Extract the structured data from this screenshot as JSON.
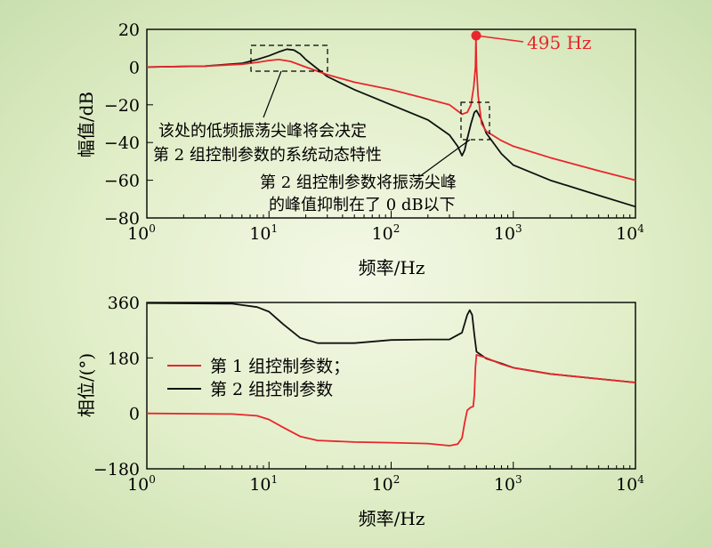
{
  "colors": {
    "red": "#e8262c",
    "black": "#111111"
  },
  "chart_data": [
    {
      "type": "line",
      "xscale": "log",
      "xlim": [
        1,
        10000
      ],
      "ylim": [
        -80,
        20
      ],
      "xlabel": "频率/Hz",
      "ylabel": "幅值/dB",
      "xtick_base": "10",
      "xtick_exponents": [
        "0",
        "1",
        "2",
        "3",
        "4"
      ],
      "yticks": [
        "20",
        "0",
        "−20",
        "−40",
        "−60",
        "−80"
      ],
      "ytick_values": [
        20,
        0,
        -20,
        -40,
        -60,
        -80
      ],
      "series": [
        {
          "name": "第 1 组控制参数；",
          "color": "red",
          "points": [
            [
              1,
              0
            ],
            [
              3,
              0.5
            ],
            [
              6,
              1.5
            ],
            [
              8,
              2.5
            ],
            [
              10,
              3.5
            ],
            [
              12,
              4
            ],
            [
              15,
              3
            ],
            [
              20,
              0
            ],
            [
              30,
              -4
            ],
            [
              50,
              -8
            ],
            [
              100,
              -12
            ],
            [
              200,
              -17
            ],
            [
              300,
              -20
            ],
            [
              380,
              -25
            ],
            [
              420,
              -24
            ],
            [
              450,
              -20
            ],
            [
              475,
              -10
            ],
            [
              490,
              0
            ],
            [
              495,
              16
            ],
            [
              500,
              0
            ],
            [
              515,
              -15
            ],
            [
              550,
              -30
            ],
            [
              600,
              -34
            ],
            [
              800,
              -39
            ],
            [
              1000,
              -42
            ],
            [
              2000,
              -48
            ],
            [
              5000,
              -55
            ],
            [
              10000,
              -60
            ]
          ]
        },
        {
          "name": "第 2 组控制参数",
          "color": "black",
          "points": [
            [
              1,
              0
            ],
            [
              3,
              0.5
            ],
            [
              6,
              2
            ],
            [
              8,
              4
            ],
            [
              10,
              6
            ],
            [
              12,
              8
            ],
            [
              14,
              9.5
            ],
            [
              16,
              9
            ],
            [
              18,
              7
            ],
            [
              20,
              4
            ],
            [
              25,
              -1
            ],
            [
              30,
              -5
            ],
            [
              50,
              -12
            ],
            [
              100,
              -20
            ],
            [
              200,
              -28
            ],
            [
              300,
              -36
            ],
            [
              350,
              -42
            ],
            [
              380,
              -47
            ],
            [
              400,
              -44
            ],
            [
              420,
              -38
            ],
            [
              450,
              -30
            ],
            [
              480,
              -24
            ],
            [
              500,
              -23
            ],
            [
              540,
              -27
            ],
            [
              600,
              -35
            ],
            [
              800,
              -46
            ],
            [
              1000,
              -52
            ],
            [
              2000,
              -60
            ],
            [
              5000,
              -68
            ],
            [
              10000,
              -74
            ]
          ]
        }
      ],
      "annotations": {
        "peak_label": "495 Hz",
        "peak_point": [
          495,
          16
        ],
        "note1_line1": "该处的低频振荡尖峰将会决定",
        "note1_line2": "第 2 组控制参数的系统动态特性",
        "note2_line1": "第 2 组控制参数将振荡尖峰",
        "note2_line2": "的峰值抑制在了 0 dB以下"
      }
    },
    {
      "type": "line",
      "xscale": "log",
      "xlim": [
        1,
        10000
      ],
      "ylim": [
        -180,
        360
      ],
      "xlabel": "频率/Hz",
      "ylabel": "相位/(°)",
      "xtick_base": "10",
      "xtick_exponents": [
        "0",
        "1",
        "2",
        "3",
        "4"
      ],
      "yticks": [
        "360",
        "180",
        "0",
        "−180"
      ],
      "ytick_values": [
        360,
        180,
        0,
        -180
      ],
      "legend_position": "left",
      "series": [
        {
          "name": "第 1 组控制参数；",
          "color": "red",
          "points": [
            [
              1,
              0
            ],
            [
              5,
              -2
            ],
            [
              8,
              -8
            ],
            [
              10,
              -20
            ],
            [
              13,
              -45
            ],
            [
              18,
              -75
            ],
            [
              25,
              -88
            ],
            [
              50,
              -93
            ],
            [
              100,
              -95
            ],
            [
              200,
              -98
            ],
            [
              300,
              -105
            ],
            [
              350,
              -100
            ],
            [
              380,
              -80
            ],
            [
              400,
              -30
            ],
            [
              420,
              10
            ],
            [
              450,
              20
            ],
            [
              470,
              22
            ],
            [
              480,
              60
            ],
            [
              490,
              150
            ],
            [
              500,
              190
            ],
            [
              600,
              180
            ],
            [
              800,
              160
            ],
            [
              1000,
              148
            ],
            [
              2000,
              128
            ],
            [
              5000,
              112
            ],
            [
              10000,
              100
            ]
          ]
        },
        {
          "name": "第 2 组控制参数",
          "color": "black",
          "points": [
            [
              1,
              358
            ],
            [
              5,
              356
            ],
            [
              8,
              345
            ],
            [
              10,
              330
            ],
            [
              13,
              290
            ],
            [
              18,
              245
            ],
            [
              25,
              228
            ],
            [
              50,
              228
            ],
            [
              100,
              238
            ],
            [
              200,
              240
            ],
            [
              300,
              240
            ],
            [
              380,
              262
            ],
            [
              420,
              320
            ],
            [
              440,
              335
            ],
            [
              460,
              320
            ],
            [
              480,
              255
            ],
            [
              500,
              200
            ],
            [
              600,
              178
            ],
            [
              800,
              162
            ],
            [
              1000,
              148
            ],
            [
              2000,
              128
            ],
            [
              5000,
              112
            ],
            [
              10000,
              100
            ]
          ]
        }
      ]
    }
  ]
}
